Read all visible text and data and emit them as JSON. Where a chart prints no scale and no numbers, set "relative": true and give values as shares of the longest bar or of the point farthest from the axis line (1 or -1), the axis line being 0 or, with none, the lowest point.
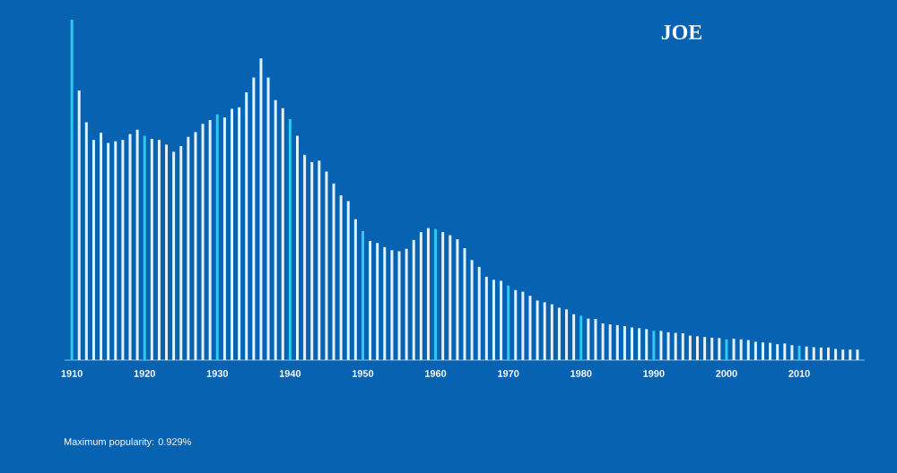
{
  "chart_data": {
    "type": "bar",
    "title": "JOE",
    "relative": true,
    "x": [
      1910,
      1911,
      1912,
      1913,
      1914,
      1915,
      1916,
      1917,
      1918,
      1919,
      1920,
      1921,
      1922,
      1923,
      1924,
      1925,
      1926,
      1927,
      1928,
      1929,
      1930,
      1931,
      1932,
      1933,
      1934,
      1935,
      1936,
      1937,
      1938,
      1939,
      1940,
      1941,
      1942,
      1943,
      1944,
      1945,
      1946,
      1947,
      1948,
      1949,
      1950,
      1951,
      1952,
      1953,
      1954,
      1955,
      1956,
      1957,
      1958,
      1959,
      1960,
      1961,
      1962,
      1963,
      1964,
      1965,
      1966,
      1967,
      1968,
      1969,
      1970,
      1971,
      1972,
      1973,
      1974,
      1975,
      1976,
      1977,
      1978,
      1979,
      1980,
      1981,
      1982,
      1983,
      1984,
      1985,
      1986,
      1987,
      1988,
      1989,
      1990,
      1991,
      1992,
      1993,
      1994,
      1995,
      1996,
      1997,
      1998,
      1999,
      2000,
      2001,
      2002,
      2003,
      2004,
      2005,
      2006,
      2007,
      2008,
      2009,
      2010,
      2011,
      2012,
      2013,
      2014,
      2015,
      2016,
      2017,
      2018
    ],
    "values": [
      1.0,
      0.792,
      0.699,
      0.647,
      0.668,
      0.638,
      0.643,
      0.647,
      0.664,
      0.677,
      0.659,
      0.65,
      0.647,
      0.633,
      0.612,
      0.629,
      0.656,
      0.67,
      0.694,
      0.705,
      0.722,
      0.713,
      0.738,
      0.743,
      0.787,
      0.83,
      0.886,
      0.83,
      0.764,
      0.74,
      0.708,
      0.659,
      0.603,
      0.582,
      0.586,
      0.554,
      0.519,
      0.484,
      0.467,
      0.414,
      0.379,
      0.35,
      0.344,
      0.332,
      0.323,
      0.32,
      0.327,
      0.353,
      0.376,
      0.388,
      0.385,
      0.376,
      0.367,
      0.355,
      0.329,
      0.294,
      0.274,
      0.245,
      0.236,
      0.233,
      0.219,
      0.206,
      0.201,
      0.189,
      0.175,
      0.17,
      0.164,
      0.154,
      0.149,
      0.135,
      0.131,
      0.122,
      0.121,
      0.108,
      0.105,
      0.103,
      0.1,
      0.096,
      0.094,
      0.091,
      0.086,
      0.086,
      0.082,
      0.08,
      0.079,
      0.072,
      0.07,
      0.068,
      0.066,
      0.065,
      0.061,
      0.063,
      0.061,
      0.059,
      0.054,
      0.052,
      0.051,
      0.047,
      0.049,
      0.044,
      0.042,
      0.04,
      0.038,
      0.037,
      0.037,
      0.033,
      0.031,
      0.031,
      0.031
    ],
    "colors": [
      "#2ec8f0",
      "#e2f1fb",
      "#e2f1fb",
      "#e2f1fb",
      "#e2f1fb",
      "#e2f1fb",
      "#e2f1fb",
      "#e2f1fb",
      "#e2f1fb",
      "#e2f1fb",
      "#2ec8f0",
      "#e2f1fb",
      "#e2f1fb",
      "#e2f1fb",
      "#e2f1fb",
      "#e2f1fb",
      "#e2f1fb",
      "#e2f1fb",
      "#e2f1fb",
      "#e2f1fb",
      "#2ec8f0",
      "#e2f1fb",
      "#e2f1fb",
      "#e2f1fb",
      "#e2f1fb",
      "#e2f1fb",
      "#e2f1fb",
      "#e2f1fb",
      "#e2f1fb",
      "#e2f1fb",
      "#2ec8f0",
      "#e2f1fb",
      "#e2f1fb",
      "#e2f1fb",
      "#e2f1fb",
      "#e2f1fb",
      "#e2f1fb",
      "#e2f1fb",
      "#e2f1fb",
      "#e2f1fb",
      "#2ec8f0",
      "#e2f1fb",
      "#e2f1fb",
      "#e2f1fb",
      "#e2f1fb",
      "#e2f1fb",
      "#e2f1fb",
      "#e2f1fb",
      "#e2f1fb",
      "#e2f1fb",
      "#2ec8f0",
      "#e2f1fb",
      "#e2f1fb",
      "#e2f1fb",
      "#e2f1fb",
      "#e2f1fb",
      "#e2f1fb",
      "#e2f1fb",
      "#e2f1fb",
      "#e2f1fb",
      "#2ec8f0",
      "#e2f1fb",
      "#e2f1fb",
      "#e2f1fb",
      "#e2f1fb",
      "#e2f1fb",
      "#e2f1fb",
      "#e2f1fb",
      "#e2f1fb",
      "#e2f1fb",
      "#2ec8f0",
      "#e2f1fb",
      "#e2f1fb",
      "#e2f1fb",
      "#e2f1fb",
      "#e2f1fb",
      "#e2f1fb",
      "#e2f1fb",
      "#e2f1fb",
      "#e2f1fb",
      "#2ec8f0",
      "#e2f1fb",
      "#e2f1fb",
      "#e2f1fb",
      "#e2f1fb",
      "#e2f1fb",
      "#e2f1fb",
      "#e2f1fb",
      "#e2f1fb",
      "#e2f1fb",
      "#2ec8f0",
      "#e2f1fb",
      "#e2f1fb",
      "#e2f1fb",
      "#e2f1fb",
      "#e2f1fb",
      "#e2f1fb",
      "#e2f1fb",
      "#e2f1fb",
      "#e2f1fb",
      "#2ec8f0",
      "#e2f1fb",
      "#e2f1fb",
      "#e2f1fb",
      "#e2f1fb",
      "#e2f1fb",
      "#e2f1fb",
      "#e2f1fb",
      "#e2f1fb"
    ],
    "xlim": [
      1909,
      2019
    ],
    "xticks": [
      1910,
      1920,
      1930,
      1940,
      1950,
      1960,
      1970,
      1980,
      1990,
      2000,
      2010
    ],
    "annotations": [
      "Maximum popularity: 0.929%"
    ]
  }
}
